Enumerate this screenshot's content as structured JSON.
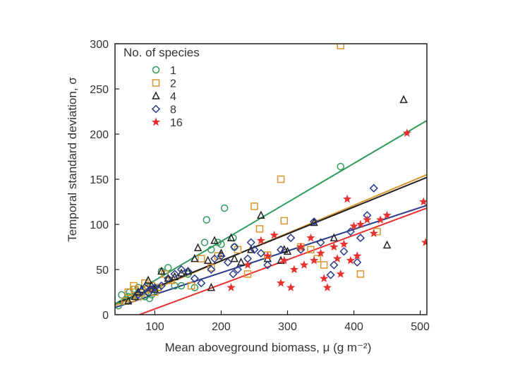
{
  "chart_data": {
    "type": "scatter",
    "title": "",
    "xlabel": "Mean aboveground biomass, μ (g m⁻²)",
    "ylabel": "Temporal standard deviation, σ",
    "xlim": [
      40,
      510
    ],
    "ylim": [
      0,
      300
    ],
    "xticks": [
      100,
      200,
      300,
      400,
      500
    ],
    "yticks": [
      0,
      50,
      100,
      150,
      200,
      250,
      300
    ],
    "legend": {
      "title": "No. of species",
      "position": "top-left"
    },
    "series": [
      {
        "name": "1",
        "marker": "circle",
        "color": "#2e9a5b",
        "points": [
          [
            45,
            10
          ],
          [
            50,
            22
          ],
          [
            55,
            15
          ],
          [
            60,
            20
          ],
          [
            62,
            25
          ],
          [
            68,
            28
          ],
          [
            72,
            22
          ],
          [
            75,
            30
          ],
          [
            80,
            25
          ],
          [
            85,
            20
          ],
          [
            88,
            32
          ],
          [
            92,
            18
          ],
          [
            95,
            22
          ],
          [
            100,
            28
          ],
          [
            105,
            30
          ],
          [
            110,
            48
          ],
          [
            120,
            52
          ],
          [
            130,
            32
          ],
          [
            140,
            32
          ],
          [
            150,
            45
          ],
          [
            160,
            30
          ],
          [
            175,
            80
          ],
          [
            178,
            105
          ],
          [
            185,
            72
          ],
          [
            195,
            80
          ],
          [
            200,
            78
          ],
          [
            205,
            118
          ],
          [
            218,
            85
          ],
          [
            220,
            75
          ],
          [
            380,
            164
          ]
        ],
        "fit": [
          [
            40,
            12
          ],
          [
            510,
            215
          ]
        ]
      },
      {
        "name": "2",
        "marker": "square",
        "color": "#d9962e",
        "points": [
          [
            55,
            15
          ],
          [
            60,
            25
          ],
          [
            65,
            18
          ],
          [
            68,
            32
          ],
          [
            70,
            28
          ],
          [
            75,
            20
          ],
          [
            80,
            24
          ],
          [
            85,
            35
          ],
          [
            90,
            28
          ],
          [
            95,
            32
          ],
          [
            100,
            25
          ],
          [
            105,
            30
          ],
          [
            115,
            45
          ],
          [
            125,
            38
          ],
          [
            155,
            32
          ],
          [
            170,
            62
          ],
          [
            185,
            52
          ],
          [
            195,
            65
          ],
          [
            225,
            72
          ],
          [
            240,
            45
          ],
          [
            250,
            120
          ],
          [
            258,
            95
          ],
          [
            270,
            66
          ],
          [
            290,
            150
          ],
          [
            295,
            104
          ],
          [
            320,
            75
          ],
          [
            335,
            72
          ],
          [
            345,
            62
          ],
          [
            355,
            55
          ],
          [
            380,
            298
          ],
          [
            410,
            45
          ],
          [
            435,
            92
          ]
        ],
        "fit": [
          [
            40,
            10
          ],
          [
            510,
            155
          ]
        ]
      },
      {
        "name": "4",
        "marker": "triangle",
        "color": "#222222",
        "points": [
          [
            60,
            15
          ],
          [
            70,
            20
          ],
          [
            75,
            25
          ],
          [
            80,
            28
          ],
          [
            90,
            38
          ],
          [
            95,
            32
          ],
          [
            100,
            28
          ],
          [
            110,
            48
          ],
          [
            120,
            40
          ],
          [
            130,
            42
          ],
          [
            140,
            46
          ],
          [
            150,
            48
          ],
          [
            160,
            62
          ],
          [
            165,
            74
          ],
          [
            180,
            60
          ],
          [
            185,
            30
          ],
          [
            190,
            82
          ],
          [
            200,
            68
          ],
          [
            215,
            85
          ],
          [
            220,
            62
          ],
          [
            230,
            58
          ],
          [
            245,
            72
          ],
          [
            260,
            110
          ],
          [
            270,
            62
          ],
          [
            290,
            60
          ],
          [
            295,
            72
          ],
          [
            300,
            70
          ],
          [
            340,
            102
          ],
          [
            370,
            85
          ],
          [
            450,
            77
          ],
          [
            475,
            238
          ]
        ],
        "fit": [
          [
            40,
            12
          ],
          [
            510,
            152
          ]
        ]
      },
      {
        "name": "8",
        "marker": "diamond",
        "color": "#2a3a8c",
        "points": [
          [
            75,
            22
          ],
          [
            80,
            26
          ],
          [
            85,
            30
          ],
          [
            90,
            24
          ],
          [
            95,
            28
          ],
          [
            100,
            30
          ],
          [
            110,
            32
          ],
          [
            120,
            40
          ],
          [
            130,
            45
          ],
          [
            140,
            50
          ],
          [
            150,
            48
          ],
          [
            160,
            40
          ],
          [
            170,
            35
          ],
          [
            185,
            50
          ],
          [
            190,
            62
          ],
          [
            200,
            65
          ],
          [
            210,
            58
          ],
          [
            218,
            45
          ],
          [
            220,
            75
          ],
          [
            225,
            50
          ],
          [
            240,
            62
          ],
          [
            245,
            80
          ],
          [
            250,
            72
          ],
          [
            260,
            68
          ],
          [
            270,
            55
          ],
          [
            290,
            72
          ],
          [
            305,
            85
          ],
          [
            320,
            72
          ],
          [
            340,
            103
          ],
          [
            350,
            80
          ],
          [
            365,
            44
          ],
          [
            370,
            55
          ],
          [
            385,
            70
          ],
          [
            395,
            92
          ],
          [
            405,
            58
          ],
          [
            410,
            85
          ],
          [
            420,
            110
          ],
          [
            430,
            140
          ]
        ],
        "fit": [
          [
            40,
            8
          ],
          [
            510,
            121
          ]
        ]
      },
      {
        "name": "16",
        "marker": "star",
        "color": "#e8302e",
        "points": [
          [
            215,
            30
          ],
          [
            240,
            55
          ],
          [
            260,
            82
          ],
          [
            270,
            65
          ],
          [
            280,
            88
          ],
          [
            290,
            35
          ],
          [
            295,
            60
          ],
          [
            305,
            30
          ],
          [
            310,
            50
          ],
          [
            320,
            75
          ],
          [
            325,
            55
          ],
          [
            335,
            85
          ],
          [
            340,
            60
          ],
          [
            350,
            68
          ],
          [
            355,
            40
          ],
          [
            360,
            30
          ],
          [
            370,
            75
          ],
          [
            375,
            62
          ],
          [
            380,
            45
          ],
          [
            385,
            78
          ],
          [
            390,
            128
          ],
          [
            395,
            60
          ],
          [
            400,
            98
          ],
          [
            405,
            65
          ],
          [
            410,
            100
          ],
          [
            420,
            105
          ],
          [
            430,
            90
          ],
          [
            440,
            105
          ],
          [
            450,
            110
          ],
          [
            480,
            201
          ],
          [
            505,
            125
          ],
          [
            508,
            80
          ]
        ],
        "fit": [
          [
            40,
            -10
          ],
          [
            510,
            118
          ]
        ]
      }
    ]
  }
}
